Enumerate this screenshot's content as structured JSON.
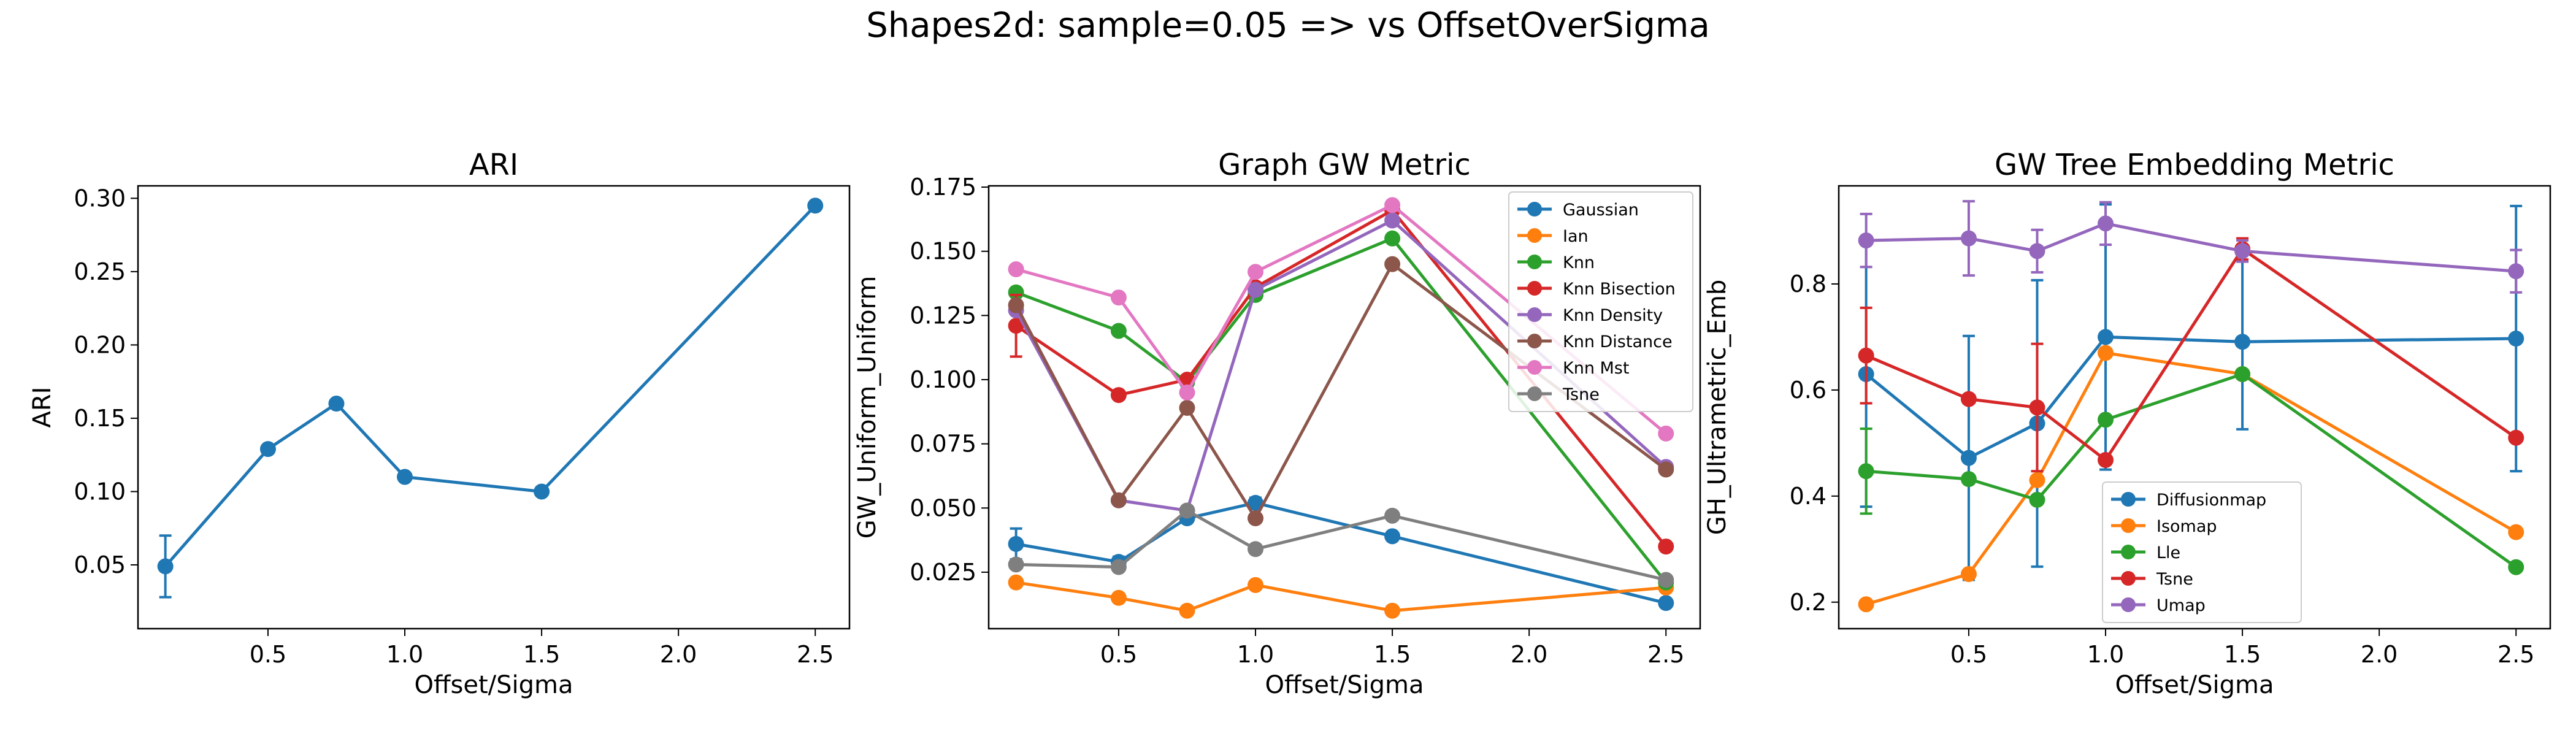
{
  "figure": {
    "suptitle": "Shapes2d: sample=0.05 => vs OffsetOverSigma"
  },
  "chart_data": [
    {
      "type": "line",
      "title": "ARI",
      "xlabel": "Offset/Sigma",
      "ylabel": "ARI",
      "xlim": [
        0.025,
        2.625
      ],
      "ylim": [
        0.0065,
        0.3085
      ],
      "xticks": [
        0.5,
        1.0,
        1.5,
        2.0,
        2.5
      ],
      "xtick_labels": [
        "0.5",
        "1.0",
        "1.5",
        "2.0",
        "2.5"
      ],
      "yticks": [
        0.05,
        0.1,
        0.15,
        0.2,
        0.25,
        0.3
      ],
      "ytick_labels": [
        "0.05",
        "0.10",
        "0.15",
        "0.20",
        "0.25",
        "0.30"
      ],
      "legend": null,
      "x": [
        0.125,
        0.5,
        0.75,
        1.0,
        1.5,
        2.5
      ],
      "series": [
        {
          "color": "#1f77b4",
          "values": [
            0.049,
            0.129,
            0.16,
            0.11,
            0.1,
            0.295
          ],
          "err": [
            0.021,
            0,
            0,
            0,
            0,
            0
          ]
        }
      ]
    },
    {
      "type": "line",
      "title": "Graph GW Metric",
      "xlabel": "Offset/Sigma",
      "ylabel": "GW_Uniform_Uniform",
      "xlim": [
        0.025,
        2.625
      ],
      "ylim": [
        0.003,
        0.1755
      ],
      "xticks": [
        0.5,
        1.0,
        1.5,
        2.0,
        2.5
      ],
      "xtick_labels": [
        "0.5",
        "1.0",
        "1.5",
        "2.0",
        "2.5"
      ],
      "yticks": [
        0.025,
        0.05,
        0.075,
        0.1,
        0.125,
        0.15,
        0.175
      ],
      "ytick_labels": [
        "0.025",
        "0.050",
        "0.075",
        "0.100",
        "0.125",
        "0.150",
        "0.175"
      ],
      "legend": "top-right",
      "x": [
        0.125,
        0.5,
        0.75,
        1.0,
        1.5,
        2.5
      ],
      "series": [
        {
          "name": "Gaussian",
          "color": "#1f77b4",
          "values": [
            0.036,
            0.029,
            0.046,
            0.052,
            0.039,
            0.013
          ],
          "err": [
            0.006,
            0.002,
            0,
            0.002,
            0,
            0
          ]
        },
        {
          "name": "Ian",
          "color": "#ff7f0e",
          "values": [
            0.021,
            0.015,
            0.01,
            0.02,
            0.01,
            0.019
          ],
          "err": [
            0,
            0,
            0,
            0,
            0,
            0
          ]
        },
        {
          "name": "Knn",
          "color": "#2ca02c",
          "values": [
            0.134,
            0.119,
            0.099,
            0.133,
            0.155,
            0.021
          ],
          "err": [
            0,
            0,
            0,
            0,
            0,
            0
          ]
        },
        {
          "name": "Knn Bisection",
          "color": "#d62728",
          "values": [
            0.121,
            0.094,
            0.1,
            0.136,
            0.166,
            0.035
          ],
          "err": [
            0.012,
            0,
            0,
            0,
            0,
            0
          ]
        },
        {
          "name": "Knn Density",
          "color": "#9467bd",
          "values": [
            0.127,
            0.053,
            0.049,
            0.135,
            0.162,
            0.066
          ],
          "err": [
            0,
            0,
            0,
            0,
            0,
            0
          ]
        },
        {
          "name": "Knn Distance",
          "color": "#8c564b",
          "values": [
            0.129,
            0.053,
            0.089,
            0.046,
            0.145,
            0.065
          ],
          "err": [
            0,
            0,
            0,
            0,
            0,
            0
          ]
        },
        {
          "name": "Knn Mst",
          "color": "#e377c2",
          "values": [
            0.143,
            0.132,
            0.095,
            0.142,
            0.168,
            0.079
          ],
          "err": [
            0,
            0,
            0,
            0,
            0,
            0
          ]
        },
        {
          "name": "Tsne",
          "color": "#7f7f7f",
          "values": [
            0.028,
            0.027,
            0.049,
            0.034,
            0.047,
            0.022
          ],
          "err": [
            0,
            0,
            0,
            0,
            0,
            0
          ]
        }
      ]
    },
    {
      "type": "line",
      "title": "GW Tree Embedding Metric",
      "xlabel": "Offset/Sigma",
      "ylabel": "GH_Ultrametric_Emb",
      "xlim": [
        0.025,
        2.625
      ],
      "ylim": [
        0.15,
        0.985
      ],
      "xticks": [
        0.5,
        1.0,
        1.5,
        2.0,
        2.5
      ],
      "xtick_labels": [
        "0.5",
        "1.0",
        "1.5",
        "2.0",
        "2.5"
      ],
      "yticks": [
        0.2,
        0.4,
        0.6,
        0.8
      ],
      "ytick_labels": [
        "0.2",
        "0.4",
        "0.6",
        "0.8"
      ],
      "legend": "lower-center",
      "x": [
        0.125,
        0.5,
        0.75,
        1.0,
        1.5,
        2.5
      ],
      "series": [
        {
          "name": "Diffusionmap",
          "color": "#1f77b4",
          "values": [
            0.63,
            0.472,
            0.537,
            0.7,
            0.691,
            0.697
          ],
          "err": [
            0.25,
            0.23,
            0.27,
            0.25,
            0.165,
            0.25
          ]
        },
        {
          "name": "Isomap",
          "color": "#ff7f0e",
          "values": [
            0.196,
            0.253,
            0.43,
            0.67,
            0.63,
            0.332
          ],
          "err": [
            0,
            0,
            0,
            0,
            0,
            0
          ]
        },
        {
          "name": "Lle",
          "color": "#2ca02c",
          "values": [
            0.447,
            0.432,
            0.393,
            0.544,
            0.63,
            0.266
          ],
          "err": [
            0.08,
            0,
            0,
            0,
            0,
            0
          ]
        },
        {
          "name": "Tsne",
          "color": "#d62728",
          "values": [
            0.665,
            0.583,
            0.567,
            0.468,
            0.866,
            0.51
          ],
          "err": [
            0.09,
            0,
            0.12,
            0,
            0.02,
            0
          ]
        },
        {
          "name": "Umap",
          "color": "#9467bd",
          "values": [
            0.882,
            0.886,
            0.862,
            0.914,
            0.862,
            0.824
          ],
          "err": [
            0.05,
            0.07,
            0.04,
            0.04,
            0.02,
            0.04
          ]
        }
      ]
    }
  ]
}
